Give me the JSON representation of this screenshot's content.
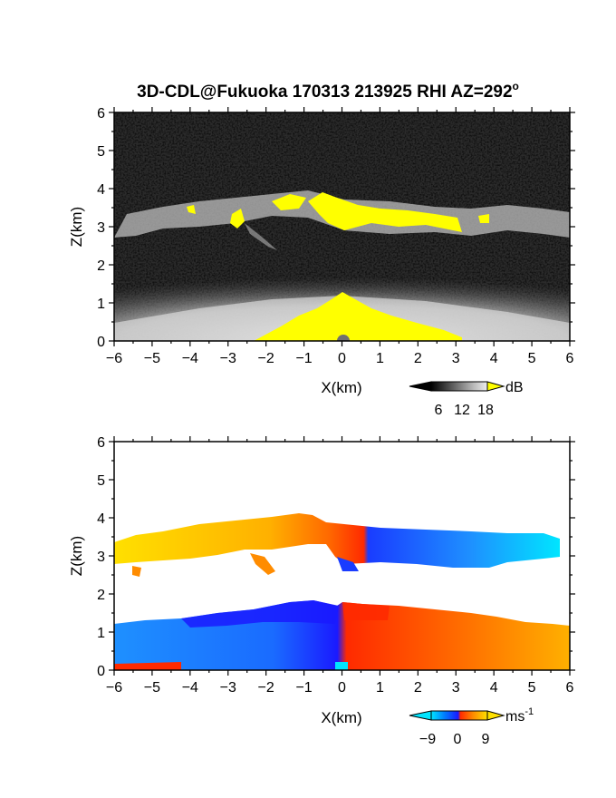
{
  "title": "3D-CDL@Fukuoka 170313 213925 RHI AZ=292",
  "title_superscript": "o",
  "chart_data": [
    {
      "type": "heatmap",
      "panel": "reflectivity",
      "xlabel": "X(km)",
      "ylabel": "Z(km)",
      "xlim": [
        -6,
        6
      ],
      "ylim": [
        0,
        6
      ],
      "xticks": [
        -6,
        -5,
        -4,
        -3,
        -2,
        -1,
        0,
        1,
        2,
        3,
        4,
        5,
        6
      ],
      "yticks": [
        0,
        1,
        2,
        3,
        4,
        5,
        6
      ],
      "colorbar": {
        "unit": "dB",
        "tick_labels": [
          "6",
          "12",
          "18"
        ],
        "colors": [
          "#000000",
          "#3c3c3c",
          "#7a7a7a",
          "#b8b8b8",
          "#eeeeee",
          "#ffff00"
        ],
        "extend": "both"
      },
      "background_color": "#2b2b2b",
      "saturation_color": "#ffff00",
      "features": [
        {
          "name": "cloud layer",
          "z_bottom_km": 2.6,
          "z_top_km": 3.9,
          "x_range_km": [
            -6,
            6
          ],
          "strong_echo_x_range_km": [
            -1.0,
            3.4
          ]
        },
        {
          "name": "near-surface echo",
          "z_top_km": 1.4,
          "strong_echo_z_top_km": 0.9,
          "strong_echo_x_range_km": [
            -2.2,
            3.0
          ]
        }
      ]
    },
    {
      "type": "heatmap",
      "panel": "doppler velocity",
      "xlabel": "X(km)",
      "ylabel": "Z(km)",
      "xlim": [
        -6,
        6
      ],
      "ylim": [
        0,
        6
      ],
      "xticks": [
        -6,
        -5,
        -4,
        -3,
        -2,
        -1,
        0,
        1,
        2,
        3,
        4,
        5,
        6
      ],
      "yticks": [
        0,
        1,
        2,
        3,
        4,
        5,
        6
      ],
      "colorbar": {
        "unit": "ms",
        "unit_exponent": "-1",
        "tick_labels": [
          "−9",
          "0",
          "9"
        ],
        "colors": [
          "#00e5ff",
          "#0077ff",
          "#1a1aff",
          "#ff2a00",
          "#ff8c00",
          "#ffe000"
        ],
        "extend": "both"
      },
      "features": [
        {
          "name": "cloud layer",
          "z_bottom_km": 2.5,
          "z_top_km": 4.1,
          "x_range_km": [
            -6,
            5.8
          ],
          "left_of_zero": "positive (orange-yellow)",
          "right_of_zero": "negative (blue-cyan)"
        },
        {
          "name": "boundary layer",
          "z_top_km": 1.8,
          "x_range_km": [
            -6,
            6
          ],
          "left_of_zero": "negative (blue)",
          "right_of_zero": "positive (red-orange)"
        }
      ]
    }
  ]
}
